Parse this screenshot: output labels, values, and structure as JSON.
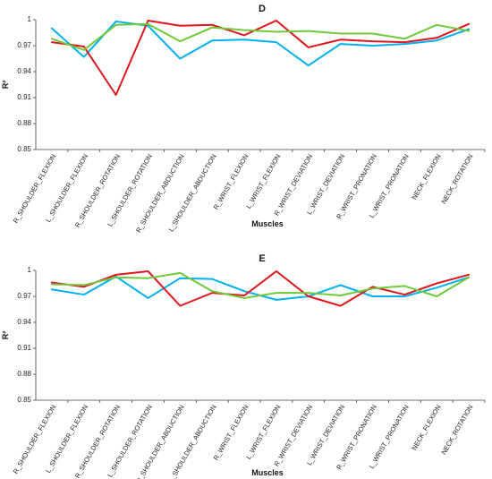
{
  "chart_data": [
    {
      "type": "line",
      "title": "D",
      "xlabel": "Muscles",
      "ylabel": "R²",
      "ylim": [
        0.85,
        1.0
      ],
      "yticks": [
        "0.85",
        "0.88",
        "0.91",
        "0.94",
        "0.97",
        "1"
      ],
      "grid": false,
      "legend": "none",
      "categories": [
        "R_SHOULDER_FLEXION",
        "L_SHOULDER_FLEXION",
        "R_SHOULDER_ROTATION",
        "L_SHOULDER_ROTATION",
        "R_SHOULDER_ABDUCTION",
        "L_SHOULDER_ABDUCTION",
        "R_WRIST_FLEXION",
        "L_WRIST_FLEXION",
        "R_WRIST_DEVIATION",
        "L_WRIST_DEVIATION",
        "R_WRIST_PRONATION",
        "L_WRIST_PRONATION",
        "NECK_FLEXION",
        "NECK_ROTATION"
      ],
      "series": [
        {
          "color": "#00b0f0",
          "values": [
            0.99,
            0.957,
            0.998,
            0.993,
            0.955,
            0.976,
            0.977,
            0.974,
            0.947,
            0.972,
            0.97,
            0.972,
            0.976,
            0.989
          ]
        },
        {
          "color": "#e0161e",
          "values": [
            0.974,
            0.969,
            0.913,
            0.999,
            0.993,
            0.994,
            0.982,
            0.999,
            0.968,
            0.977,
            0.975,
            0.974,
            0.979,
            0.995
          ]
        },
        {
          "color": "#70c93a",
          "values": [
            0.978,
            0.965,
            0.994,
            0.995,
            0.975,
            0.991,
            0.988,
            0.986,
            0.987,
            0.984,
            0.984,
            0.978,
            0.994,
            0.987
          ]
        }
      ]
    },
    {
      "type": "line",
      "title": "E",
      "xlabel": "Muscles",
      "ylabel": "R²",
      "ylim": [
        0.85,
        1.0
      ],
      "yticks": [
        "0.85",
        "0.88",
        "0.91",
        "0.94",
        "0.97",
        "1"
      ],
      "grid": false,
      "legend": "none",
      "categories": [
        "R_SHOULDER_FLEXION",
        "L_SHOULDER_FLEXION",
        "R_SHOULDER_ROTATION",
        "L_SHOULDER_ROTATION",
        "R_SHOULDER_ABDUCTION",
        "L_SHOULDER_ABDUCTION",
        "R_WRIST_FLEXION",
        "L_WRIST_FLEXION",
        "R_WRIST_DEVIATION",
        "L_WRIST_DEVIATION",
        "R_WRIST_PRONATION",
        "L_WRIST_PRONATION",
        "NECK_FLEXION",
        "NECK_ROTATION"
      ],
      "series": [
        {
          "color": "#00b0f0",
          "values": [
            0.978,
            0.972,
            0.993,
            0.968,
            0.991,
            0.99,
            0.976,
            0.966,
            0.97,
            0.983,
            0.97,
            0.97,
            0.98,
            0.992
          ]
        },
        {
          "color": "#e0161e",
          "values": [
            0.986,
            0.981,
            0.995,
            0.999,
            0.959,
            0.974,
            0.971,
            0.999,
            0.97,
            0.959,
            0.981,
            0.972,
            0.985,
            0.995
          ]
        },
        {
          "color": "#70c93a",
          "values": [
            0.984,
            0.983,
            0.992,
            0.991,
            0.997,
            0.976,
            0.968,
            0.974,
            0.974,
            0.971,
            0.979,
            0.982,
            0.97,
            0.992
          ]
        }
      ]
    }
  ]
}
